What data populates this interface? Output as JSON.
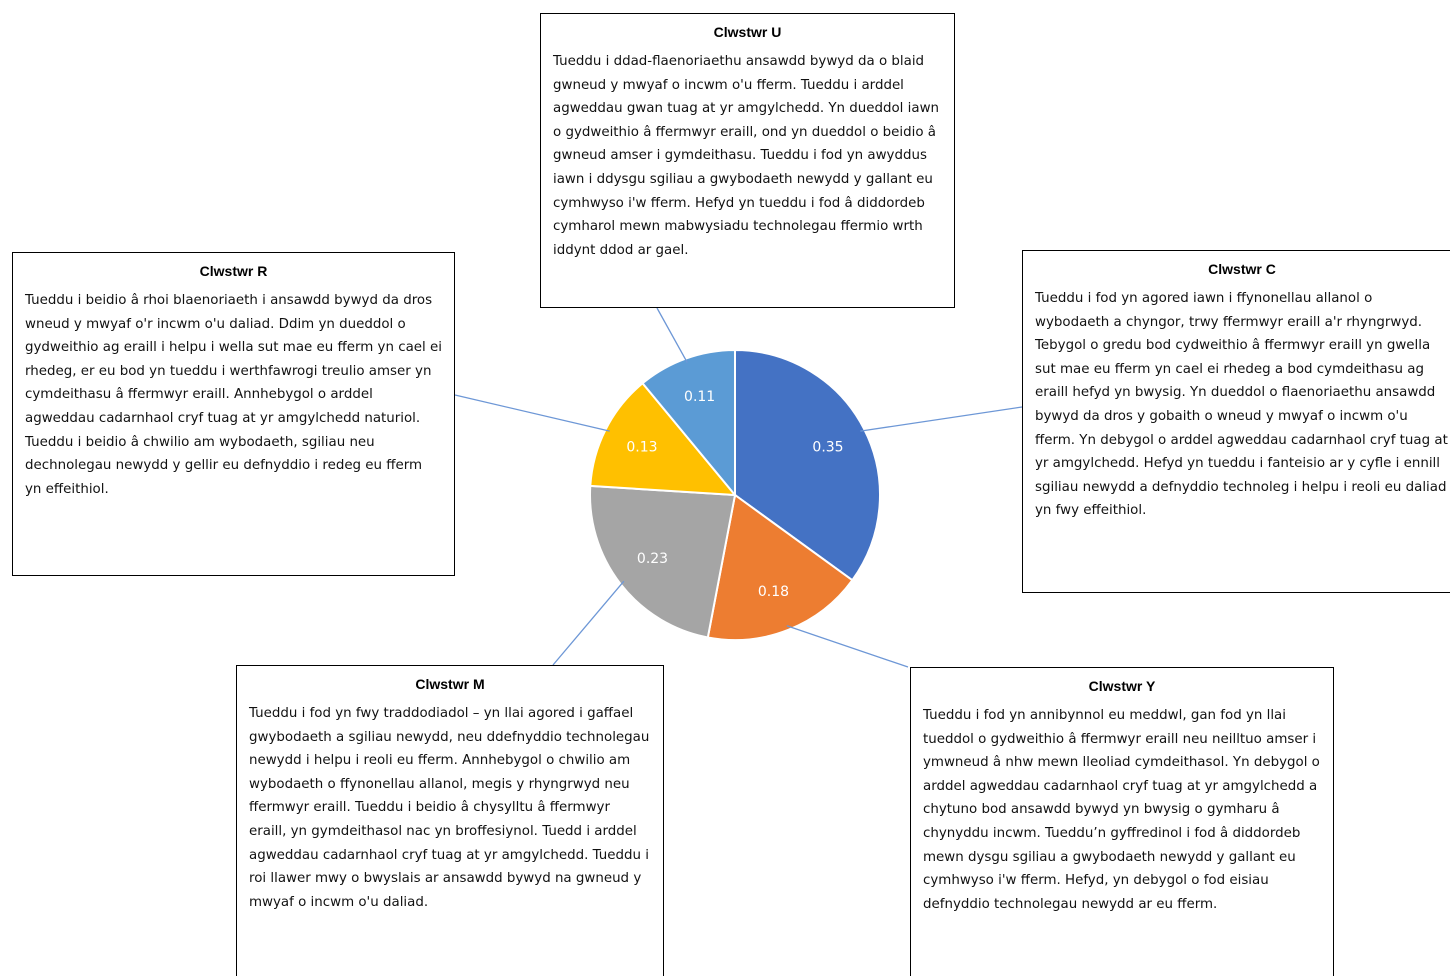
{
  "chart_data": {
    "type": "pie",
    "categories": [
      "Clwstwr C",
      "Clwstwr Y",
      "Clwstwr M",
      "Clwstwr R",
      "Clwstwr U"
    ],
    "descriptions": [
      "Tueddu i fod yn agored iawn i ffynonellau allanol o wybodaeth a chyngor, trwy ffermwyr eraill a'r rhyngrwyd. Tebygol o gredu bod cydweithio â ffermwyr eraill yn gwella sut mae eu fferm yn cael ei rhedeg a bod cymdeithasu ag eraill hefyd yn bwysig. Yn dueddol o flaenoriaethu ansawdd bywyd da dros y gobaith o wneud y mwyaf o incwm o'u fferm. Yn debygol o arddel agweddau cadarnhaol cryf tuag at yr amgylchedd. Hefyd yn tueddu i fanteisio ar y cyfle i ennill sgiliau newydd a defnyddio technoleg i helpu i reoli eu daliad yn fwy effeithiol.",
      "Tueddu i fod yn annibynnol eu meddwl, gan fod yn llai tueddol o gydweithio â ffermwyr eraill neu neilltuo amser i ymwneud â nhw mewn lleoliad cymdeithasol. Yn debygol o arddel agweddau cadarnhaol cryf tuag at yr amgylchedd a chytuno bod ansawdd bywyd yn bwysig o gymharu â chynyddu incwm. Tueddu’n gyffredinol i fod â diddordeb mewn dysgu sgiliau a gwybodaeth newydd y gallant eu cymhwyso i'w fferm. Hefyd, yn debygol o fod eisiau defnyddio technolegau newydd ar eu fferm.",
      "Tueddu i fod yn fwy traddodiadol – yn llai agored i gaffael gwybodaeth a sgiliau newydd, neu ddefnyddio technolegau newydd i helpu i reoli eu fferm. Annhebygol o chwilio am wybodaeth o ffynonellau allanol, megis y rhyngrwyd neu ffermwyr eraill. Tueddu i beidio â chysylltu â ffermwyr eraill, yn gymdeithasol nac yn broffesiynol. Tuedd i arddel agweddau cadarnhaol cryf tuag at yr amgylchedd. Tueddu i roi llawer mwy o bwyslais ar ansawdd bywyd na gwneud y mwyaf o incwm o'u daliad.",
      "Tueddu i beidio â rhoi blaenoriaeth i ansawdd bywyd da dros wneud y mwyaf o'r incwm o'u daliad. Ddim yn dueddol o gydweithio ag eraill i helpu i wella sut mae eu fferm yn cael ei rhedeg, er eu bod yn tueddu i werthfawrogi treulio amser yn cymdeithasu â ffermwyr eraill. Annhebygol o arddel agweddau cadarnhaol cryf tuag at yr amgylchedd naturiol. Tueddu i beidio â chwilio am wybodaeth, sgiliau neu dechnolegau newydd y gellir eu defnyddio i redeg eu fferm yn effeithiol.",
      "Tueddu i ddad-flaenoriaethu ansawdd bywyd da o blaid gwneud y mwyaf o incwm o'u fferm. Tueddu i arddel agweddau gwan tuag at yr amgylchedd. Yn dueddol iawn o gydweithio â ffermwyr eraill, ond yn dueddol o beidio â gwneud amser i gymdeithasu. Tueddu i fod yn awyddus iawn i ddysgu sgiliau a gwybodaeth newydd y gallant eu cymhwyso i'w fferm. Hefyd yn tueddu i fod â diddordeb cymharol mewn mabwysiadu technolegau ffermio wrth iddynt ddod ar gael."
    ],
    "values": [
      0.35,
      0.18,
      0.23,
      0.13,
      0.11
    ],
    "colors": [
      "#4472c4",
      "#ed7d31",
      "#a5a5a5",
      "#ffc000",
      "#5b9bd5"
    ]
  }
}
